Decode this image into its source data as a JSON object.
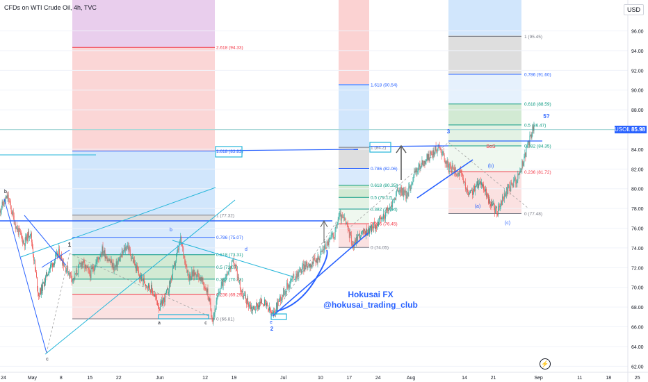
{
  "header": {
    "title": "CFDs on WTI Crude Oil, 4h, TVC",
    "currency_button": "USD"
  },
  "price_tag": {
    "symbol": "USOIL",
    "value": "85.98"
  },
  "watermark": {
    "line1": "Hokusai FX",
    "line2": "@hokusai_trading_club"
  },
  "flash_icon": "flash-icon",
  "colors": {
    "up": "#26a69a",
    "down": "#ef5350",
    "accent": "#2962ff",
    "fib_red": "#f23645",
    "fib_green": "#089981",
    "fib_blue": "#2962ff",
    "cyan": "#22b5d9"
  },
  "chart_data": {
    "type": "candlestick",
    "title": "CFDs on WTI Crude Oil, 4h, TVC",
    "ylim": [
      62,
      97.5
    ],
    "y_ticks": [
      "62.00",
      "64.00",
      "66.00",
      "68.00",
      "70.00",
      "72.00",
      "74.00",
      "76.00",
      "78.00",
      "80.00",
      "82.00",
      "84.00",
      "86.00",
      "88.00",
      "90.00",
      "92.00",
      "94.00",
      "96.00"
    ],
    "x_ticks": [
      {
        "label": "24",
        "x": 0
      },
      {
        "label": "May",
        "x": 7
      },
      {
        "label": "8",
        "x": 14
      },
      {
        "label": "15",
        "x": 21
      },
      {
        "label": "22",
        "x": 28
      },
      {
        "label": "Jun",
        "x": 38
      },
      {
        "label": "12",
        "x": 49
      },
      {
        "label": "19",
        "x": 56
      },
      {
        "label": "Jul",
        "x": 68
      },
      {
        "label": "10",
        "x": 77
      },
      {
        "label": "17",
        "x": 84
      },
      {
        "label": "24",
        "x": 91
      },
      {
        "label": "Aug",
        "x": 99
      },
      {
        "label": "14",
        "x": 112
      },
      {
        "label": "21",
        "x": 119
      },
      {
        "label": "Sep",
        "x": 130
      },
      {
        "label": "11",
        "x": 140
      },
      {
        "label": "18",
        "x": 147
      },
      {
        "label": "25",
        "x": 154
      }
    ],
    "price_path": [
      [
        -1,
        77.8
      ],
      [
        1,
        79.2
      ],
      [
        3,
        76.2
      ],
      [
        5,
        74.5
      ],
      [
        6.5,
        75.7
      ],
      [
        8.5,
        69.2
      ],
      [
        9.5,
        70.1
      ],
      [
        11,
        71.8
      ],
      [
        13.5,
        73.5
      ],
      [
        15,
        72.1
      ],
      [
        17,
        70.8
      ],
      [
        19,
        72.6
      ],
      [
        21,
        71.3
      ],
      [
        24,
        73.8
      ],
      [
        27,
        71.9
      ],
      [
        30,
        74.3
      ],
      [
        33,
        71.1
      ],
      [
        36,
        69.8
      ],
      [
        38,
        67.9
      ],
      [
        40,
        69.7
      ],
      [
        41.5,
        72.1
      ],
      [
        43,
        74.8
      ],
      [
        45,
        71.1
      ],
      [
        47,
        71.5
      ],
      [
        49.5,
        69.6
      ],
      [
        50.8,
        66.8
      ],
      [
        52.5,
        69.7
      ],
      [
        54,
        71.3
      ],
      [
        56,
        72.6
      ],
      [
        58,
        69.3
      ],
      [
        60.5,
        67.8
      ],
      [
        63,
        68.6
      ],
      [
        65.5,
        67.1
      ],
      [
        67,
        68.8
      ],
      [
        70,
        70.8
      ],
      [
        73,
        72.1
      ],
      [
        76,
        72.7
      ],
      [
        78,
        74.1
      ],
      [
        80.5,
        75.5
      ],
      [
        81.5,
        77.3
      ],
      [
        83,
        76.7
      ],
      [
        85,
        74.2
      ],
      [
        86,
        75.2
      ],
      [
        88,
        75.6
      ],
      [
        91,
        76.5
      ],
      [
        94,
        78.1
      ],
      [
        96,
        80.0
      ],
      [
        98,
        79.3
      ],
      [
        100,
        81.7
      ],
      [
        103,
        83.1
      ],
      [
        106,
        84.3
      ],
      [
        108,
        82.2
      ],
      [
        111,
        81.5
      ],
      [
        113,
        79.3
      ],
      [
        116,
        80.8
      ],
      [
        118,
        78.7
      ],
      [
        120,
        77.6
      ],
      [
        122,
        79.6
      ],
      [
        125,
        81.2
      ],
      [
        126,
        82.4
      ],
      [
        127.5,
        84.5
      ],
      [
        129,
        86.47
      ]
    ],
    "fib_retracements": [
      {
        "levels": [
          {
            "ratio": "2.618",
            "value": 94.33
          }
        ],
        "color": "red"
      },
      {
        "levels": [
          {
            "ratio": "1.618",
            "value": 83.83
          },
          {
            "ratio": "1",
            "value": 77.32
          },
          {
            "ratio": "0.786",
            "value": 75.07
          },
          {
            "ratio": "0.618",
            "value": 73.31
          },
          {
            "ratio": "0.5",
            "value": 72.07
          },
          {
            "ratio": "0.382",
            "value": 70.83
          },
          {
            "ratio": "0.236",
            "value": 69.29
          },
          {
            "ratio": "0",
            "value": 66.81
          }
        ]
      },
      {
        "levels": [
          {
            "ratio": "1.618",
            "value": 90.54
          },
          {
            "ratio": "1",
            "value": 84.2
          },
          {
            "ratio": "0.786",
            "value": 82.06
          },
          {
            "ratio": "0.618",
            "value": 80.35
          },
          {
            "ratio": "0.5",
            "value": 79.12
          },
          {
            "ratio": "0.382",
            "value": 77.94
          },
          {
            "ratio": "0.236",
            "value": 76.45
          },
          {
            "ratio": "0",
            "value": 74.05
          }
        ]
      },
      {
        "levels": [
          {
            "ratio": "1",
            "value": 95.45
          },
          {
            "ratio": "0.786",
            "value": 91.6
          },
          {
            "ratio": "0.618",
            "value": 88.59
          },
          {
            "ratio": "0.5",
            "value": 86.47
          },
          {
            "ratio": "0.382",
            "value": 84.35
          },
          {
            "ratio": "0.236",
            "value": 81.72
          },
          {
            "ratio": "0",
            "value": 77.48
          }
        ]
      }
    ],
    "fib_labels": [
      "2.618 (94.33)",
      "1.618 (83.83)",
      "1 (77.32)",
      "0.786 (75.07)",
      "0.618 (73.31)",
      "0.5 (72.07)",
      "0.382 (70.83)",
      "0.236 (69.29)",
      "0 (66.81)",
      "1.618 (90.54)",
      "1 (84.2)",
      "0.786 (82.06)",
      "0.618 (80.35)",
      "0.5 (79.12)",
      "0.382 (77.94)",
      "0.236 (76.45)",
      "0 (74.05)",
      "1 (95.45)",
      "0.786 (91.60)",
      "0.618 (88.59)",
      "0.5 (86.47)",
      "0.382 (84.35)",
      "0.236 (81.72)",
      "0 (77.48)"
    ],
    "wave_labels": [
      "b",
      "c",
      "1",
      "a",
      "b",
      "c",
      "d",
      "e",
      "2",
      "3",
      "(a)",
      "(b)",
      "(c)",
      "5?"
    ],
    "annotations": [
      "BoS"
    ],
    "last_price": 85.98
  }
}
